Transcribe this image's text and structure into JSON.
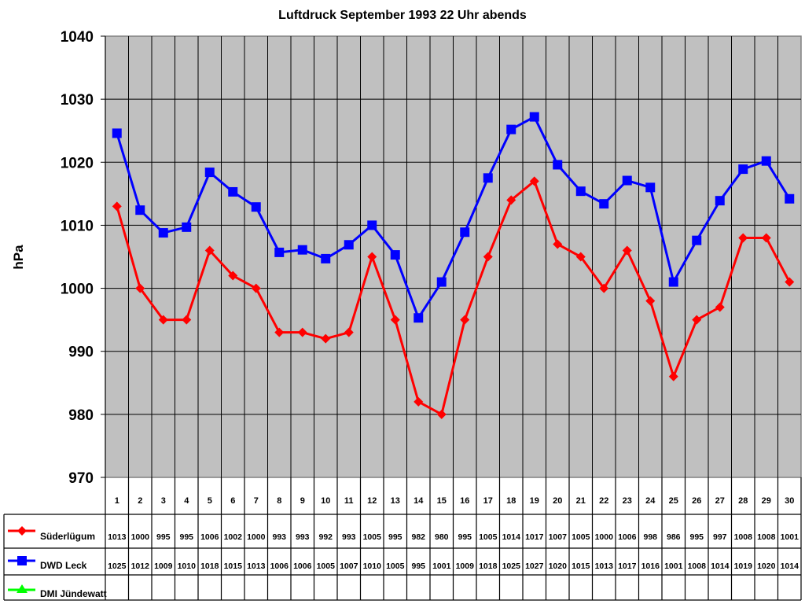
{
  "chart_data": {
    "type": "line",
    "title": "Luftdruck September 1993 22 Uhr abends",
    "xlabel": "",
    "ylabel": "hPa",
    "ylim": [
      970,
      1040
    ],
    "yticks": [
      970,
      980,
      990,
      1000,
      1010,
      1020,
      1030,
      1040
    ],
    "grid": true,
    "legend_position": "data-table-left",
    "categories": [
      "1",
      "2",
      "3",
      "4",
      "5",
      "6",
      "7",
      "8",
      "9",
      "10",
      "11",
      "12",
      "13",
      "14",
      "15",
      "16",
      "17",
      "18",
      "19",
      "20",
      "21",
      "22",
      "23",
      "24",
      "25",
      "26",
      "27",
      "28",
      "29",
      "30"
    ],
    "series": [
      {
        "name": "Süderlügum",
        "color": "#ff0000",
        "marker": "diamond",
        "values": [
          1013,
          1000,
          995,
          995,
          1006,
          1002,
          1000,
          993,
          993,
          992,
          993,
          1005,
          995,
          982,
          980,
          995,
          1005,
          1014,
          1017,
          1007,
          1005,
          1000,
          1006,
          998,
          986,
          995,
          997,
          1008,
          1008,
          1001
        ],
        "plotted": [
          1013,
          1000,
          995,
          995,
          1006,
          1002,
          1000,
          993,
          993,
          992,
          993,
          1005,
          995,
          982,
          980,
          995,
          1005,
          1014,
          1017,
          1007,
          1005,
          1000,
          1006,
          998,
          986,
          995,
          997,
          1008,
          1008,
          1001
        ]
      },
      {
        "name": "DWD Leck",
        "color": "#0000ff",
        "marker": "square",
        "values": [
          1025,
          1012,
          1009,
          1010,
          1018,
          1015,
          1013,
          1006,
          1006,
          1005,
          1007,
          1010,
          1005,
          995,
          1001,
          1009,
          1018,
          1025,
          1027,
          1020,
          1015,
          1013,
          1017,
          1016,
          1001,
          1008,
          1014,
          1019,
          1020,
          1014
        ],
        "plotted": [
          1024.6,
          1012.4,
          1008.8,
          1009.7,
          1018.4,
          1015.3,
          1012.9,
          1005.7,
          1006.1,
          1004.7,
          1006.9,
          1010.0,
          1005.3,
          995.3,
          1001.0,
          1008.9,
          1017.5,
          1025.2,
          1027.2,
          1019.6,
          1015.4,
          1013.4,
          1017.1,
          1016.0,
          1001.0,
          1007.6,
          1013.9,
          1018.9,
          1020.2,
          1014.2
        ]
      },
      {
        "name": "DMI Jündewatt",
        "color": "#00ff00",
        "marker": "triangle",
        "values": []
      }
    ]
  },
  "colors": {
    "plot_background": "#c0c0c0",
    "gridline": "#000000",
    "border": "#808080"
  }
}
